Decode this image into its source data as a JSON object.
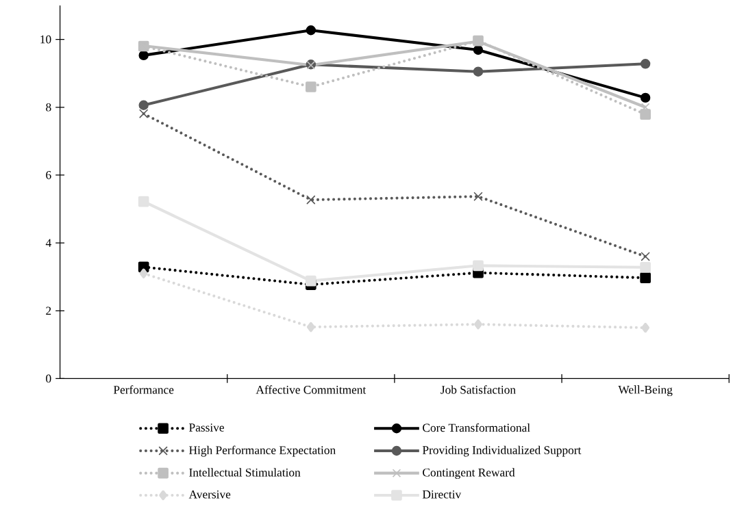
{
  "chart_data": {
    "type": "line",
    "categories": [
      "Performance",
      "Affective Commitment",
      "Job Satisfaction",
      "Well-Being"
    ],
    "ylim": [
      0,
      11
    ],
    "yticks": [
      0,
      2,
      4,
      6,
      8,
      10
    ],
    "grid": false,
    "legend": "bottom",
    "series": [
      {
        "name": "Passive",
        "color": "#000000",
        "marker": "square",
        "line_style": "dotted",
        "values": [
          3.29,
          2.77,
          3.12,
          2.97
        ]
      },
      {
        "name": "Core Transformational",
        "color": "#000000",
        "marker": "circle",
        "line_style": "solid",
        "values": [
          9.53,
          10.27,
          9.69,
          8.28
        ]
      },
      {
        "name": "High Performance Expectation",
        "color": "#595959",
        "marker": "cross",
        "line_style": "dotted",
        "values": [
          7.81,
          5.27,
          5.37,
          3.6
        ]
      },
      {
        "name": "Providing Individualized Support",
        "color": "#595959",
        "marker": "circle",
        "line_style": "solid",
        "values": [
          8.06,
          9.26,
          9.05,
          9.28
        ]
      },
      {
        "name": "Intellectual Stimulation",
        "color": "#bfbfbf",
        "marker": "square",
        "line_style": "dotted",
        "values": [
          9.8,
          8.6,
          9.96,
          7.79
        ]
      },
      {
        "name": "Contingent Reward",
        "color": "#bfbfbf",
        "marker": "cross",
        "line_style": "solid",
        "values": [
          9.81,
          9.24,
          9.94,
          8.0
        ]
      },
      {
        "name": "Aversive",
        "color": "#d9d9d9",
        "marker": "diamond",
        "line_style": "dotted",
        "values": [
          3.1,
          1.52,
          1.6,
          1.5
        ]
      },
      {
        "name": "Directiv",
        "color": "#e3e3e3",
        "marker": "square",
        "line_style": "solid",
        "values": [
          5.22,
          2.88,
          3.33,
          3.28
        ]
      }
    ]
  }
}
